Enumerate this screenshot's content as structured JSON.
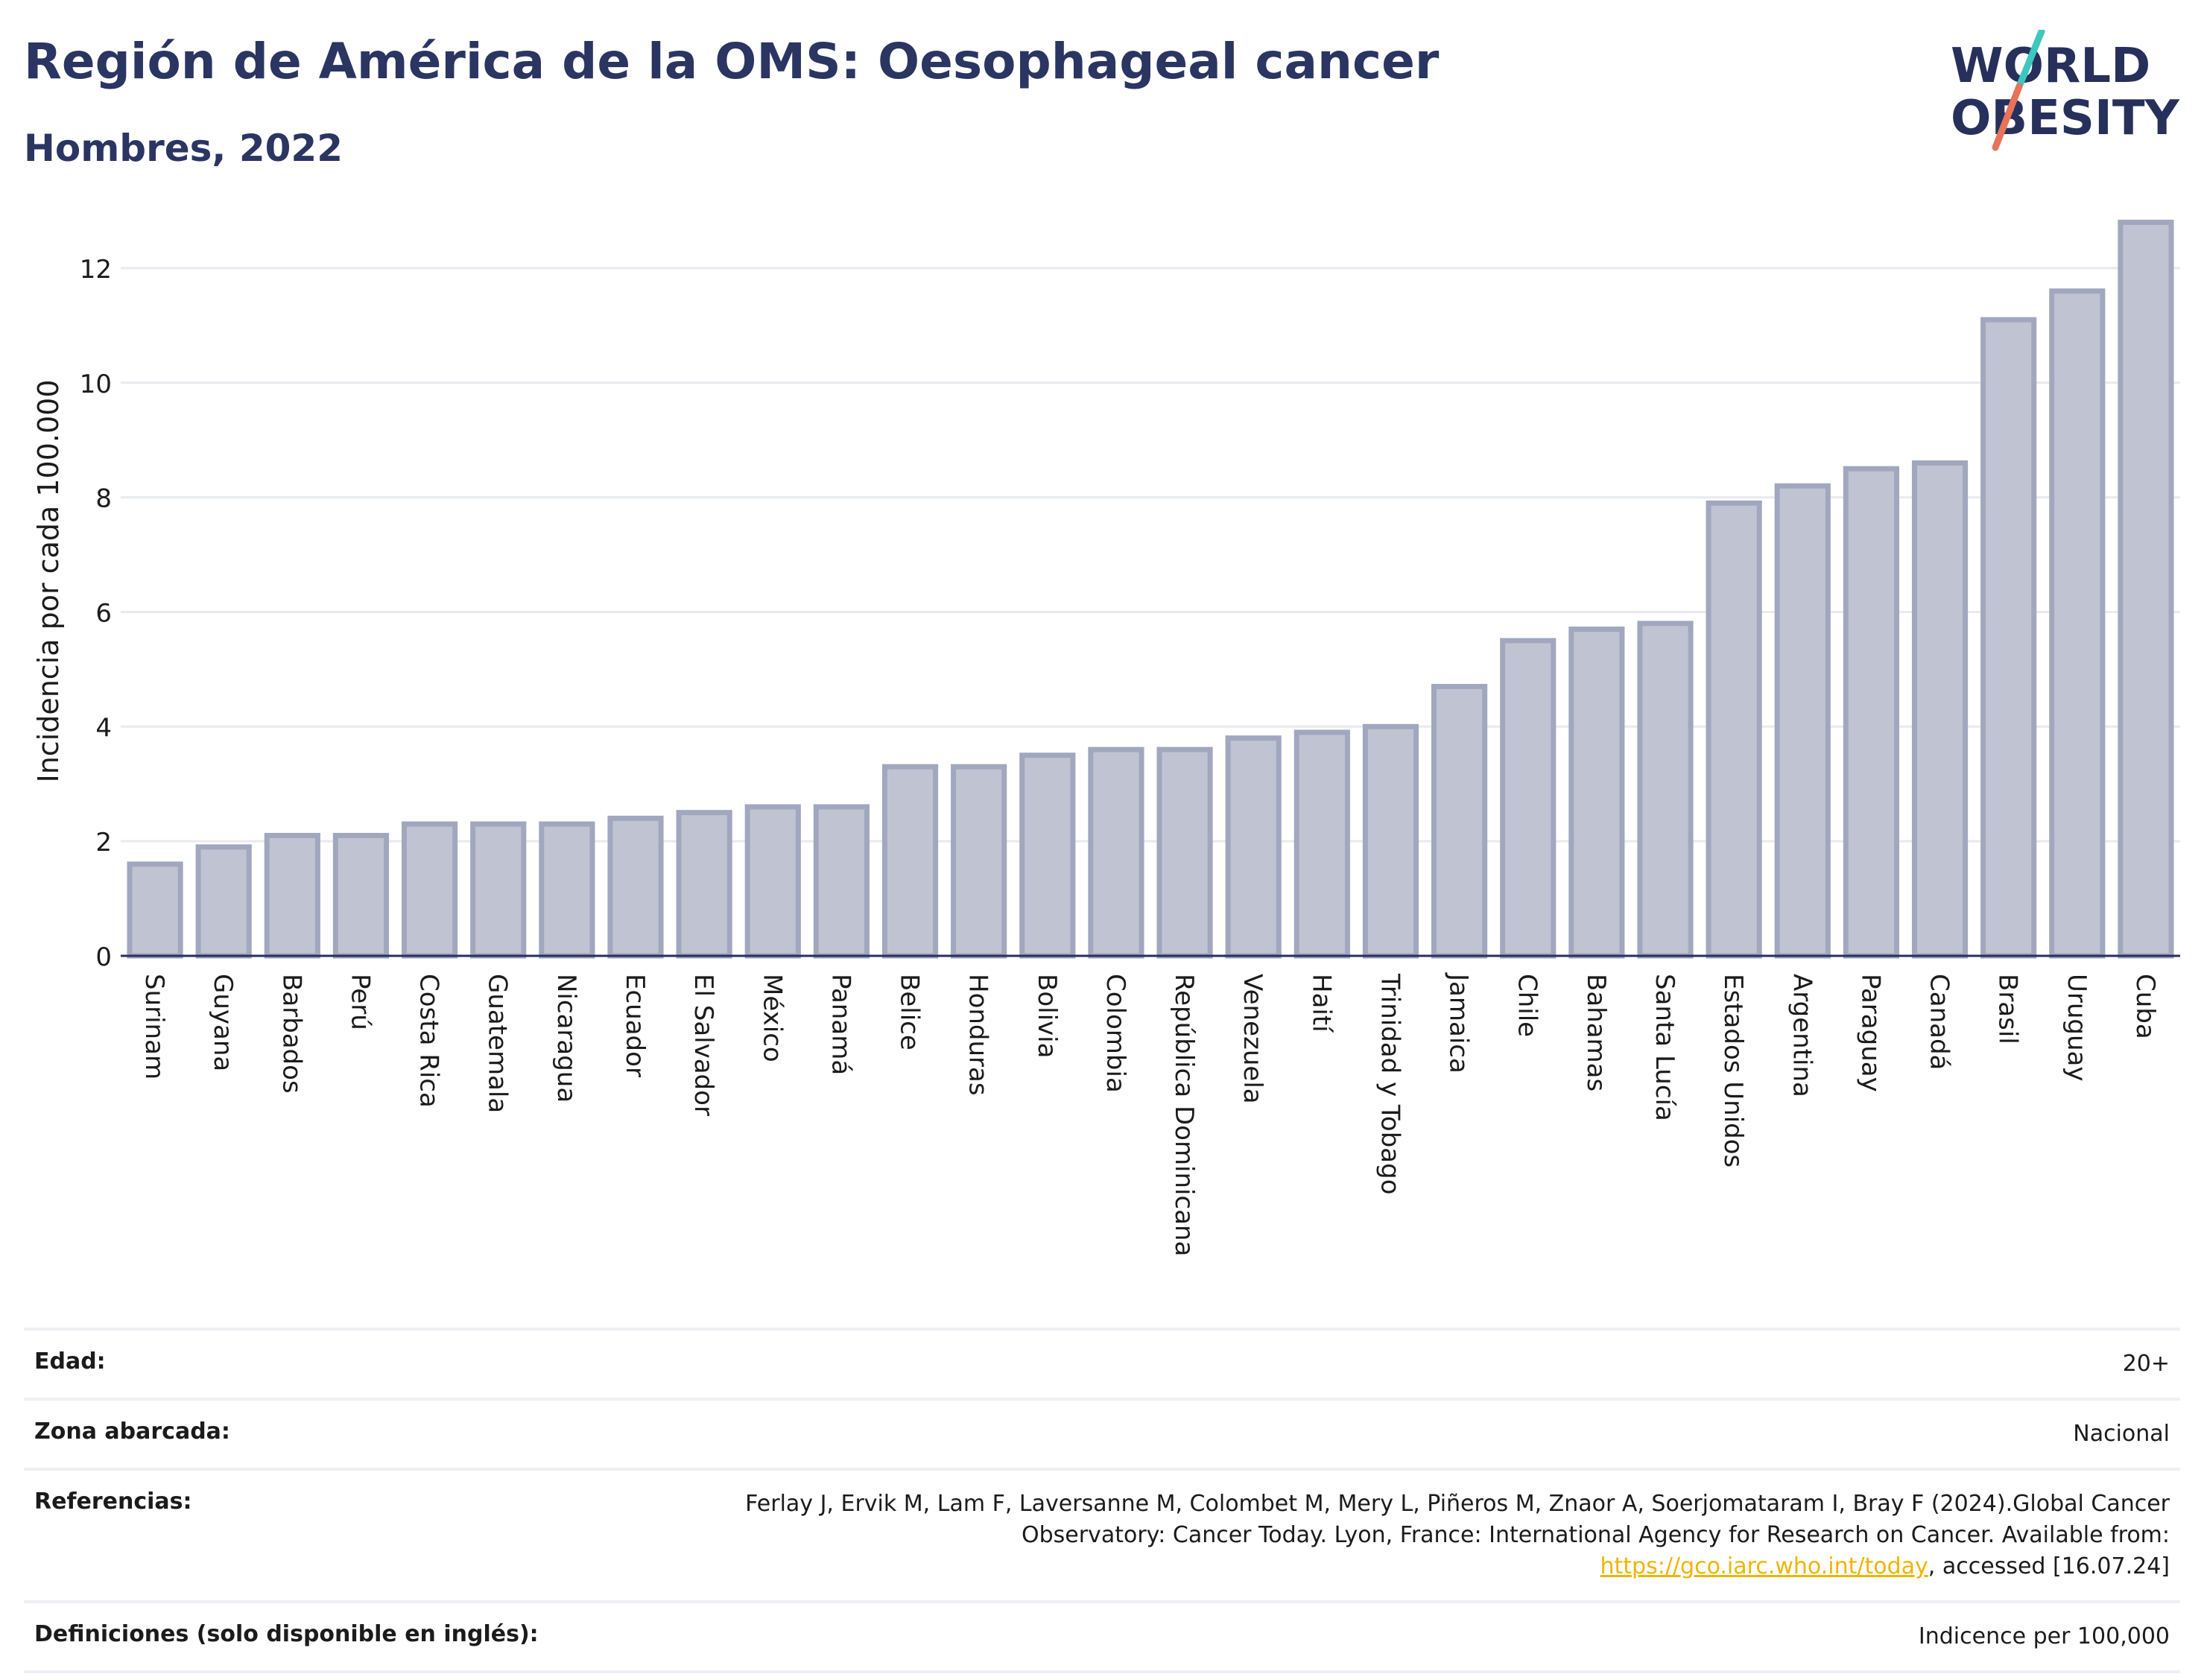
{
  "header": {
    "title": "Región de América de la OMS: Oesophageal cancer",
    "subtitle": "Hombres, 2022"
  },
  "logo": {
    "line1": "WORLD",
    "line2": "OBESITY",
    "accent_colors": [
      "#3ec6c0",
      "#e8725a"
    ]
  },
  "colors": {
    "bar_fill": "#c0c4d2",
    "bar_stroke": "#a1a7be",
    "axis": "#26305b",
    "grid": "#e8eaf0"
  },
  "chart_data": {
    "type": "bar",
    "ylabel": "Incidencia por cada 100.000",
    "ylim": [
      0,
      13
    ],
    "yticks": [
      0,
      2,
      4,
      6,
      8,
      10,
      12
    ],
    "grid": true,
    "categories": [
      "Surinam",
      "Guyana",
      "Barbados",
      "Perú",
      "Costa Rica",
      "Guatemala",
      "Nicaragua",
      "Ecuador",
      "El Salvador",
      "México",
      "Panamá",
      "Belice",
      "Honduras",
      "Bolivia",
      "Colombia",
      "República Dominicana",
      "Venezuela",
      "Haití",
      "Trinidad y Tobago",
      "Jamaica",
      "Chile",
      "Bahamas",
      "Santa Lucía",
      "Estados Unidos",
      "Argentina",
      "Paraguay",
      "Canadá",
      "Brasil",
      "Uruguay",
      "Cuba"
    ],
    "values": [
      1.6,
      1.9,
      2.1,
      2.1,
      2.3,
      2.3,
      2.3,
      2.4,
      2.5,
      2.6,
      2.6,
      3.3,
      3.3,
      3.5,
      3.6,
      3.6,
      3.8,
      3.9,
      4.0,
      4.7,
      5.5,
      5.7,
      5.8,
      7.9,
      8.2,
      8.5,
      8.6,
      11.1,
      11.6,
      12.8
    ]
  },
  "meta": {
    "age_label": "Edad:",
    "age_value": "20+",
    "area_label": "Zona abarcada:",
    "area_value": "Nacional",
    "ref_label": "Referencias:",
    "ref_text": "Ferlay J, Ervik M, Lam F, Laversanne M, Colombet M, Mery L, Piñeros M, Znaor A, Soerjomataram I, Bray F (2024).Global Cancer Observatory: Cancer Today. Lyon, France: International Agency for Research on Cancer. Available from: ",
    "ref_link": "https://gco.iarc.who.int/today",
    "ref_tail": ", accessed [16.07.24]",
    "def_label": "Definiciones (solo disponible en inglés):",
    "def_value": "Indicence per 100,000"
  }
}
